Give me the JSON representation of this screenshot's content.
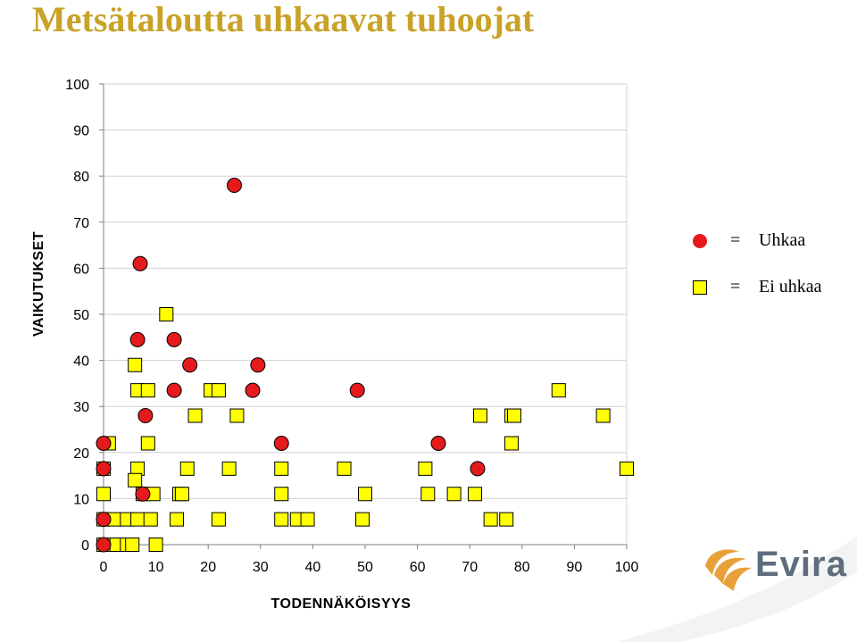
{
  "title": "Metsätaloutta uhkaavat tuhoojat",
  "legend": {
    "threat": {
      "equals": "=",
      "label": "Uhkaa",
      "color": "#e41a1c"
    },
    "no_threat": {
      "equals": "=",
      "label": "Ei uhkaa",
      "color": "#ffff00"
    }
  },
  "logo": {
    "text": "Evira",
    "mark_color": "#e8a13a",
    "text_color": "#5f6d7c"
  },
  "chart_data": {
    "type": "scatter",
    "title": "Metsätaloutta uhkaavat tuhoojat",
    "xlabel": "TODENNÄKÖISYYS",
    "ylabel": "VAIKUTUKSET",
    "xlim": [
      0,
      100
    ],
    "ylim": [
      0,
      100
    ],
    "xticks": [
      0,
      10,
      20,
      30,
      40,
      50,
      60,
      70,
      80,
      90,
      100
    ],
    "yticks": [
      0,
      10,
      20,
      30,
      40,
      50,
      60,
      70,
      80,
      90,
      100
    ],
    "grid": "y-major",
    "legend_position": "right",
    "series": [
      {
        "name": "Uhkaa",
        "marker": "circle",
        "color": "#e41a1c",
        "points": [
          [
            0,
            0
          ],
          [
            0,
            5.5
          ],
          [
            0,
            16.5
          ],
          [
            0,
            22
          ],
          [
            7,
            61
          ],
          [
            6.5,
            44.5
          ],
          [
            13.5,
            44.5
          ],
          [
            16.5,
            39
          ],
          [
            13.5,
            33.5
          ],
          [
            8,
            28
          ],
          [
            7.5,
            11
          ],
          [
            25,
            78
          ],
          [
            29.5,
            39
          ],
          [
            28.5,
            33.5
          ],
          [
            34,
            22
          ],
          [
            48.5,
            33.5
          ],
          [
            64,
            22
          ],
          [
            71.5,
            16.5
          ]
        ]
      },
      {
        "name": "Ei uhkaa",
        "marker": "square",
        "color": "#ffff00",
        "points": [
          [
            0,
            0
          ],
          [
            2.5,
            0
          ],
          [
            4.5,
            0
          ],
          [
            5.5,
            0
          ],
          [
            10,
            0
          ],
          [
            0,
            5.5
          ],
          [
            2,
            5.5
          ],
          [
            4.5,
            5.5
          ],
          [
            6.5,
            5.5
          ],
          [
            9,
            5.5
          ],
          [
            14,
            5.5
          ],
          [
            22,
            5.5
          ],
          [
            34,
            5.5
          ],
          [
            37,
            5.5
          ],
          [
            39,
            5.5
          ],
          [
            49.5,
            5.5
          ],
          [
            74,
            5.5
          ],
          [
            77,
            5.5
          ],
          [
            0,
            11
          ],
          [
            7.5,
            11
          ],
          [
            9.5,
            11
          ],
          [
            14.5,
            11
          ],
          [
            15,
            11
          ],
          [
            34,
            11
          ],
          [
            50,
            11
          ],
          [
            62,
            11
          ],
          [
            67,
            11
          ],
          [
            71,
            11
          ],
          [
            0,
            16.5
          ],
          [
            6.5,
            16.5
          ],
          [
            16,
            16.5
          ],
          [
            24,
            16.5
          ],
          [
            34,
            16.5
          ],
          [
            46,
            16.5
          ],
          [
            61.5,
            16.5
          ],
          [
            100,
            16.5
          ],
          [
            1,
            22
          ],
          [
            8.5,
            22
          ],
          [
            78,
            22
          ],
          [
            17.5,
            28
          ],
          [
            25.5,
            28
          ],
          [
            72,
            28
          ],
          [
            78,
            28
          ],
          [
            78.5,
            28
          ],
          [
            95.5,
            28
          ],
          [
            6.5,
            33.5
          ],
          [
            8.5,
            33.5
          ],
          [
            20.5,
            33.5
          ],
          [
            22,
            33.5
          ],
          [
            87,
            33.5
          ],
          [
            6,
            39
          ],
          [
            12,
            50
          ],
          [
            6,
            14
          ]
        ]
      }
    ]
  }
}
